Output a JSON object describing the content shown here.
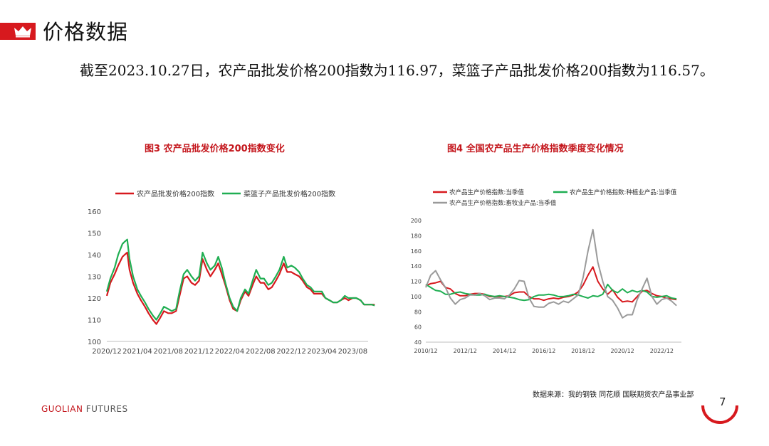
{
  "header": {
    "title": "价格数据"
  },
  "intro": "截至2023.10.27日，农产品批发价格200指数为116.97，菜篮子产品批发价格200指数为116.57。",
  "colors": {
    "red": "#d7191e",
    "green": "#1fae52",
    "gray": "#9a9a9a",
    "accent": "#c4161c"
  },
  "chart_data": [
    {
      "type": "line",
      "title": "图3 农产品批发价格200指数变化",
      "ylim": [
        100,
        160
      ],
      "yticks": [
        "100",
        "110",
        "120",
        "130",
        "140",
        "150",
        "160"
      ],
      "xlim": [
        "2020-12",
        "2023-10"
      ],
      "xticks": [
        "2020/12",
        "2021/04",
        "2021/08",
        "2021/12",
        "2022/04",
        "2022/08",
        "2022/12",
        "2023/04",
        "2023/08"
      ],
      "x": [
        "2020-12-01",
        "2020-12-15",
        "2021-01-01",
        "2021-01-15",
        "2021-02-01",
        "2021-02-10",
        "2021-02-20",
        "2021-03-01",
        "2021-03-15",
        "2021-04-01",
        "2021-04-15",
        "2021-05-01",
        "2021-05-15",
        "2021-06-01",
        "2021-06-15",
        "2021-07-01",
        "2021-07-15",
        "2021-08-01",
        "2021-08-15",
        "2021-09-01",
        "2021-09-15",
        "2021-10-01",
        "2021-10-15",
        "2021-11-01",
        "2021-11-15",
        "2021-12-01",
        "2021-12-15",
        "2022-01-01",
        "2022-01-15",
        "2022-02-01",
        "2022-02-15",
        "2022-03-01",
        "2022-03-15",
        "2022-04-01",
        "2022-04-15",
        "2022-05-01",
        "2022-05-15",
        "2022-06-01",
        "2022-06-15",
        "2022-07-01",
        "2022-07-15",
        "2022-08-01",
        "2022-08-15",
        "2022-09-01",
        "2022-09-15",
        "2022-10-01",
        "2022-10-15",
        "2022-11-01",
        "2022-11-15",
        "2022-12-01",
        "2022-12-15",
        "2023-01-01",
        "2023-01-15",
        "2023-02-01",
        "2023-02-15",
        "2023-03-01",
        "2023-03-15",
        "2023-04-01",
        "2023-04-15",
        "2023-05-01",
        "2023-05-15",
        "2023-06-01",
        "2023-06-15",
        "2023-07-01",
        "2023-07-15",
        "2023-08-01",
        "2023-08-15",
        "2023-09-01",
        "2023-09-15",
        "2023-10-01",
        "2023-10-15",
        "2023-10-27"
      ],
      "series": [
        {
          "name": "农产品批发价格200指数",
          "color": "#d7191e",
          "values": [
            121,
            127,
            131,
            135,
            139,
            140,
            141,
            133,
            127,
            122,
            119,
            116,
            113,
            110,
            108,
            111,
            114,
            113,
            113,
            114,
            121,
            129,
            130,
            127,
            126,
            128,
            138,
            133,
            130,
            133,
            136,
            131,
            126,
            119,
            115,
            114,
            119,
            123,
            121,
            126,
            130,
            127,
            127,
            124,
            125,
            128,
            131,
            136,
            132,
            132,
            131,
            130,
            128,
            125,
            124,
            122,
            122,
            122,
            120,
            119,
            118,
            118,
            119,
            120,
            119,
            120,
            120,
            119,
            117,
            117,
            117,
            116.97
          ]
        },
        {
          "name": "菜篮子产品批发价格200指数",
          "color": "#1fae52",
          "values": [
            123,
            129,
            134,
            140,
            145,
            146,
            147,
            138,
            130,
            124,
            121,
            118,
            115,
            112,
            110,
            113,
            116,
            115,
            114,
            115,
            123,
            131,
            133,
            130,
            128,
            130,
            141,
            136,
            133,
            135,
            139,
            134,
            127,
            120,
            116,
            114,
            120,
            124,
            122,
            128,
            133,
            129,
            129,
            126,
            127,
            130,
            133,
            139,
            134,
            135,
            134,
            132,
            129,
            126,
            125,
            123,
            123,
            123,
            120,
            119,
            118,
            118,
            119,
            121,
            120,
            120,
            120,
            119,
            117,
            117,
            117,
            116.57
          ]
        }
      ]
    },
    {
      "type": "line",
      "title": "图4 全国农产品生产价格指数季度变化情况",
      "ylim": [
        40,
        200
      ],
      "yticks": [
        "40",
        "60",
        "80",
        "100",
        "120",
        "140",
        "160",
        "180",
        "200"
      ],
      "xlim": [
        "2010-12",
        "2023-12"
      ],
      "xticks": [
        "2010/12",
        "2012/12",
        "2014/12",
        "2016/12",
        "2018/12",
        "2020/12",
        "2022/12"
      ],
      "x": [
        "2010-Q4",
        "2011-Q1",
        "2011-Q2",
        "2011-Q3",
        "2011-Q4",
        "2012-Q1",
        "2012-Q2",
        "2012-Q3",
        "2012-Q4",
        "2013-Q1",
        "2013-Q2",
        "2013-Q3",
        "2013-Q4",
        "2014-Q1",
        "2014-Q2",
        "2014-Q3",
        "2014-Q4",
        "2015-Q1",
        "2015-Q2",
        "2015-Q3",
        "2015-Q4",
        "2016-Q1",
        "2016-Q2",
        "2016-Q3",
        "2016-Q4",
        "2017-Q1",
        "2017-Q2",
        "2017-Q3",
        "2017-Q4",
        "2018-Q1",
        "2018-Q2",
        "2018-Q3",
        "2018-Q4",
        "2019-Q1",
        "2019-Q2",
        "2019-Q3",
        "2019-Q4",
        "2020-Q1",
        "2020-Q2",
        "2020-Q3",
        "2020-Q4",
        "2021-Q1",
        "2021-Q2",
        "2021-Q3",
        "2021-Q4",
        "2022-Q1",
        "2022-Q2",
        "2022-Q3",
        "2022-Q4",
        "2023-Q1",
        "2023-Q2",
        "2023-Q3"
      ],
      "series": [
        {
          "name": "农产品生产价格指数:当季值",
          "color": "#d7191e",
          "values": [
            114,
            117,
            118,
            120,
            112,
            110,
            104,
            101,
            101,
            103,
            104,
            104,
            103,
            100,
            100,
            100,
            100,
            101,
            105,
            106,
            106,
            100,
            97,
            97,
            95,
            97,
            98,
            97,
            99,
            100,
            102,
            106,
            115,
            128,
            139,
            120,
            110,
            103,
            109,
            99,
            93,
            94,
            93,
            100,
            107,
            108,
            104,
            101,
            100,
            98,
            97,
            96
          ]
        },
        {
          "name": "农产品生产价格指数:种植业产品:当季值",
          "color": "#1fae52",
          "values": [
            116,
            112,
            108,
            107,
            103,
            103,
            105,
            106,
            104,
            103,
            102,
            102,
            103,
            101,
            100,
            101,
            100,
            99,
            98,
            96,
            95,
            96,
            100,
            102,
            102,
            103,
            102,
            100,
            100,
            101,
            103,
            102,
            100,
            98,
            101,
            100,
            103,
            116,
            108,
            105,
            110,
            105,
            108,
            106,
            108,
            106,
            100,
            99,
            100,
            101,
            98,
            97
          ]
        },
        {
          "name": "农产品生产价格指数:畜牧业产品:当季值",
          "color": "#9a9a9a",
          "values": [
            112,
            128,
            134,
            122,
            112,
            98,
            90,
            96,
            98,
            102,
            102,
            104,
            101,
            96,
            98,
            98,
            97,
            102,
            110,
            121,
            120,
            98,
            87,
            86,
            86,
            91,
            93,
            90,
            94,
            92,
            97,
            102,
            125,
            160,
            188,
            145,
            120,
            100,
            95,
            85,
            72,
            76,
            76,
            96,
            110,
            124,
            100,
            90,
            96,
            98,
            94,
            88
          ]
        }
      ]
    }
  ],
  "source": "数据来源：我的钢铁  同花顺  国联期货农产品事业部",
  "footer": {
    "brand_main": "GUOLIAN",
    "brand_sub": "FUTURES",
    "page": "7"
  }
}
